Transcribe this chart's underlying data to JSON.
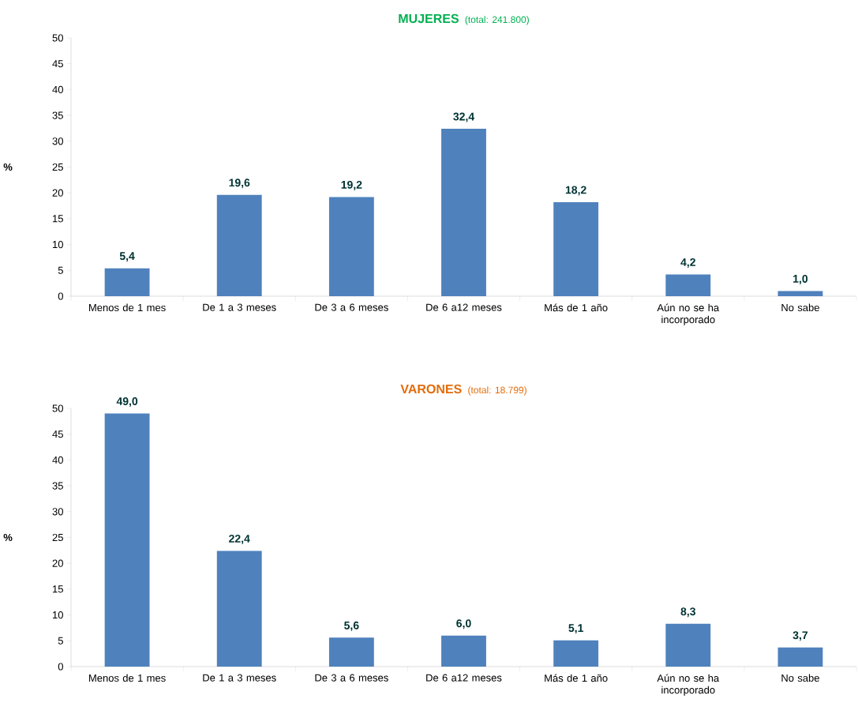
{
  "chart_data": [
    {
      "type": "bar",
      "title": "MUJERES",
      "subtitle": "(total: 241.800)",
      "ylabel": "%",
      "categories": [
        "Menos de 1 mes",
        "De 1 a 3 meses",
        "De 3 a 6 meses",
        "De 6 a12 meses",
        "Más de 1 año",
        "Aún no se ha incorporado",
        "No sabe"
      ],
      "values": [
        5.4,
        19.6,
        19.2,
        32.4,
        18.2,
        4.2,
        1.0
      ],
      "value_labels": [
        "5,4",
        "19,6",
        "19,2",
        "32,4",
        "18,2",
        "4,2",
        "1,0"
      ],
      "color": "#4f81bd",
      "ylim": [
        0,
        50
      ],
      "yticks": [
        0,
        5,
        10,
        15,
        20,
        25,
        30,
        35,
        40,
        45,
        50
      ]
    },
    {
      "type": "bar",
      "title": "VARONES",
      "subtitle": "(total: 18.799)",
      "ylabel": "%",
      "categories": [
        "Menos de 1 mes",
        "De 1 a 3 meses",
        "De 3 a 6 meses",
        "De 6 a12 meses",
        "Más de 1 año",
        "Aún no se ha incorporado",
        "No sabe"
      ],
      "values": [
        49.0,
        22.4,
        5.6,
        6.0,
        5.1,
        8.3,
        3.7
      ],
      "value_labels": [
        "49,0",
        "22,4",
        "5,6",
        "6,0",
        "5,1",
        "8,3",
        "3,7"
      ],
      "color": "#4f81bd",
      "ylim": [
        0,
        50
      ],
      "yticks": [
        0,
        5,
        10,
        15,
        20,
        25,
        30,
        35,
        40,
        45,
        50
      ]
    }
  ]
}
